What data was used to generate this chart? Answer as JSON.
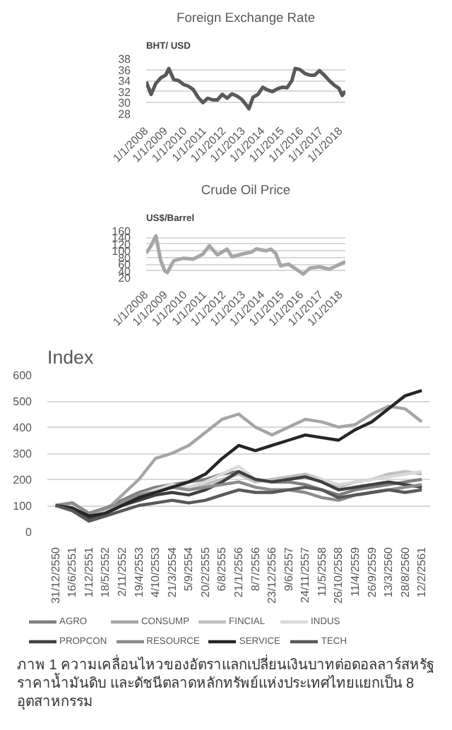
{
  "chart_data": [
    {
      "type": "line",
      "title": "Foreign Exchange Rate",
      "ylabel": "BHT/ USD",
      "grid": "y",
      "legend": false,
      "x": [
        "2008-01-01",
        "2008-04-01",
        "2008-07-01",
        "2008-10-01",
        "2009-01-01",
        "2009-03-01",
        "2009-06-01",
        "2009-09-01",
        "2009-12-01",
        "2010-03-01",
        "2010-06-01",
        "2010-09-01",
        "2010-12-01",
        "2011-03-01",
        "2011-06-01",
        "2011-09-01",
        "2011-12-01",
        "2012-03-01",
        "2012-06-01",
        "2012-09-01",
        "2012-12-01",
        "2013-03-01",
        "2013-04-15",
        "2013-07-01",
        "2013-10-01",
        "2014-01-01",
        "2014-04-01",
        "2014-07-01",
        "2014-10-01",
        "2015-01-01",
        "2015-04-01",
        "2015-07-01",
        "2015-09-01",
        "2015-12-01",
        "2016-03-01",
        "2016-06-01",
        "2016-09-01",
        "2016-12-01",
        "2017-03-01",
        "2017-06-01",
        "2017-09-01",
        "2017-12-01",
        "2018-02-01",
        "2018-04-01"
      ],
      "series": [
        {
          "color": "#595959",
          "values": [
            33.8,
            31.5,
            33.5,
            34.5,
            35,
            36.2,
            34.2,
            34,
            33.3,
            33,
            32.4,
            31,
            30,
            30.8,
            30.5,
            30.5,
            31.5,
            30.8,
            31.6,
            31.2,
            30.6,
            29.5,
            28.9,
            31,
            31.5,
            32.8,
            32.3,
            32,
            32.5,
            32.8,
            32.7,
            34,
            36.2,
            36,
            35.3,
            35,
            35,
            35.8,
            35,
            34,
            33.2,
            32.6,
            31.3,
            32.1
          ]
        }
      ],
      "xlim": [
        "2008-01-01",
        "2018-04-01"
      ],
      "ylim": [
        28,
        38
      ],
      "yticks": [
        28,
        30,
        32,
        34,
        36,
        38
      ],
      "xticks": [
        {
          "value": "2008-01-01",
          "label": "1/1/2008"
        },
        {
          "value": "2009-01-01",
          "label": "1/1/2009"
        },
        {
          "value": "2010-01-01",
          "label": "1/1/2010"
        },
        {
          "value": "2011-01-01",
          "label": "1/1/2011"
        },
        {
          "value": "2012-01-01",
          "label": "1/1/2012"
        },
        {
          "value": "2013-01-01",
          "label": "1/1/2013"
        },
        {
          "value": "2014-01-01",
          "label": "1/1/2014"
        },
        {
          "value": "2015-01-01",
          "label": "1/1/2015"
        },
        {
          "value": "2016-01-01",
          "label": "1/1/2016"
        },
        {
          "value": "2017-01-01",
          "label": "1/1/2017"
        },
        {
          "value": "2018-01-01",
          "label": "1/1/2018"
        }
      ]
    },
    {
      "type": "line",
      "title": "Crude Oil Price",
      "ylabel": "US$/Barrel",
      "grid": "y",
      "legend": false,
      "x": [
        "2008-01-01",
        "2008-04-01",
        "2008-07-01",
        "2008-10-01",
        "2008-12-15",
        "2009-02-01",
        "2009-06-01",
        "2009-12-01",
        "2010-06-01",
        "2010-12-01",
        "2011-04-01",
        "2011-09-01",
        "2012-03-01",
        "2012-06-01",
        "2012-12-01",
        "2013-06-01",
        "2013-09-01",
        "2014-03-01",
        "2014-06-01",
        "2014-09-01",
        "2014-12-01",
        "2015-05-01",
        "2015-12-01",
        "2016-02-01",
        "2016-06-01",
        "2016-12-01",
        "2017-06-01",
        "2017-12-01",
        "2018-04-01"
      ],
      "series": [
        {
          "color": "#a6a6a6",
          "values": [
            93,
            115,
            145,
            70,
            40,
            35,
            70,
            78,
            75,
            90,
            115,
            88,
            105,
            82,
            90,
            96,
            106,
            100,
            105,
            92,
            55,
            60,
            37,
            30,
            48,
            52,
            45,
            58,
            68
          ]
        }
      ],
      "xlim": [
        "2008-01-01",
        "2018-04-01"
      ],
      "ylim": [
        20,
        160
      ],
      "yticks": [
        20,
        40,
        60,
        80,
        100,
        120,
        140,
        160
      ],
      "xticks": [
        {
          "value": "2008-01-01",
          "label": "1/1/2008"
        },
        {
          "value": "2009-01-01",
          "label": "1/1/2009"
        },
        {
          "value": "2010-01-01",
          "label": "1/1/2010"
        },
        {
          "value": "2011-01-01",
          "label": "1/1/2011"
        },
        {
          "value": "2012-01-01",
          "label": "1/1/2012"
        },
        {
          "value": "2013-01-01",
          "label": "1/1/2013"
        },
        {
          "value": "2014-01-01",
          "label": "1/1/2014"
        },
        {
          "value": "2015-01-01",
          "label": "1/1/2015"
        },
        {
          "value": "2016-01-01",
          "label": "1/1/2016"
        },
        {
          "value": "2017-01-01",
          "label": "1/1/2017"
        },
        {
          "value": "2018-01-01",
          "label": "1/1/2018"
        }
      ]
    },
    {
      "type": "line",
      "title": "Index",
      "grid": "y",
      "legend": "bottom",
      "categories": [
        "31/12/2550",
        "16/6/2551",
        "1/12/2551",
        "18/5/2552",
        "2/11/2552",
        "19/4/2553",
        "4/10/2553",
        "21/3/2554",
        "5/9/2554",
        "20/2/2555",
        "6/8/2555",
        "21/1/2556",
        "8/7/2556",
        "23/12/2556",
        "9/6/2557",
        "24/11/2557",
        "11/5/2558",
        "26/10/2558",
        "11/4/2559",
        "26/9/2559",
        "13/3/2560",
        "28/8/2560",
        "12/2/2561"
      ],
      "ylim": [
        0,
        600
      ],
      "yticks": [
        0,
        100,
        200,
        300,
        400,
        500,
        600
      ],
      "series": [
        {
          "name": "AGRO",
          "color": "#7f7f7f",
          "values": [
            100,
            110,
            70,
            90,
            120,
            150,
            170,
            180,
            190,
            200,
            220,
            230,
            200,
            190,
            190,
            180,
            160,
            140,
            160,
            170,
            180,
            190,
            200
          ]
        },
        {
          "name": "CONSUMP",
          "color": "#a5a5a5",
          "values": [
            100,
            90,
            60,
            80,
            140,
            200,
            280,
            300,
            330,
            380,
            430,
            450,
            400,
            370,
            400,
            430,
            420,
            400,
            410,
            450,
            480,
            470,
            420
          ]
        },
        {
          "name": "FINCIAL",
          "color": "#bfbfbf",
          "values": [
            100,
            90,
            60,
            80,
            110,
            140,
            160,
            170,
            160,
            180,
            200,
            220,
            190,
            200,
            210,
            220,
            200,
            170,
            190,
            200,
            220,
            230,
            220
          ]
        },
        {
          "name": "INDUS",
          "color": "#d9d9d9",
          "values": [
            100,
            100,
            50,
            70,
            100,
            130,
            160,
            180,
            170,
            190,
            220,
            250,
            200,
            190,
            200,
            210,
            200,
            180,
            190,
            200,
            210,
            220,
            230
          ]
        },
        {
          "name": "PROPCON",
          "color": "#404040",
          "values": [
            100,
            90,
            50,
            70,
            100,
            120,
            140,
            150,
            140,
            160,
            190,
            230,
            200,
            190,
            200,
            210,
            190,
            160,
            170,
            180,
            190,
            180,
            170
          ]
        },
        {
          "name": "RESOURCE",
          "color": "#8c8c8c",
          "values": [
            100,
            110,
            70,
            90,
            110,
            140,
            150,
            170,
            160,
            170,
            180,
            190,
            170,
            160,
            160,
            150,
            130,
            120,
            140,
            150,
            160,
            170,
            180
          ]
        },
        {
          "name": "SERVICE",
          "color": "#262626",
          "values": [
            100,
            90,
            60,
            70,
            100,
            130,
            150,
            170,
            190,
            220,
            280,
            330,
            310,
            330,
            350,
            370,
            360,
            350,
            390,
            420,
            470,
            520,
            540
          ]
        },
        {
          "name": "TECH",
          "color": "#595959",
          "values": [
            100,
            80,
            40,
            60,
            80,
            100,
            110,
            120,
            110,
            120,
            140,
            160,
            150,
            150,
            160,
            170,
            160,
            130,
            140,
            150,
            160,
            150,
            160
          ]
        }
      ],
      "annotations": [
        "ภาพ 1 ความเคลื่อนไหวของอัตราแลกเปลี่ยนเงินบาทต่อดอลลาร์สหรัฐ ราคาน้ำมันดิบ และดัชนีตลาดหลักทรัพย์แห่งประเทศไทยแยกเป็น 8 อุตสาหกรรม"
      ]
    }
  ]
}
